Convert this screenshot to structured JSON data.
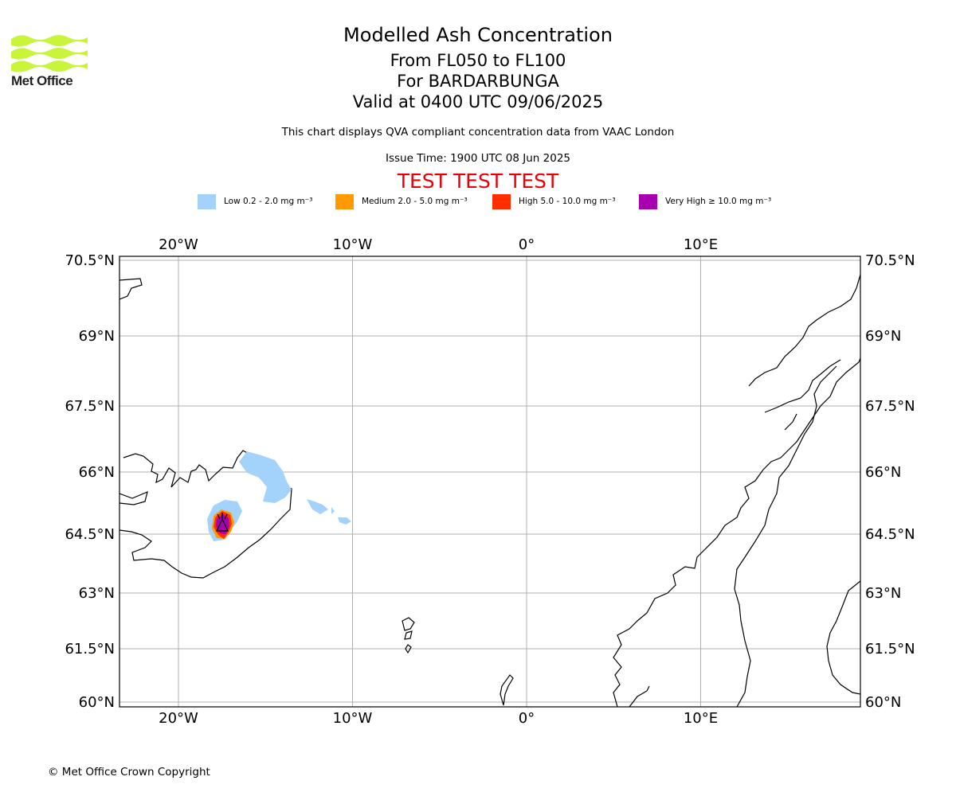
{
  "logo": {
    "text": "Met Office",
    "color": "#c8f53a"
  },
  "title": {
    "line1": "Modelled Ash Concentration",
    "line2": "From FL050 to FL100",
    "line3": "For BARDARBUNGA",
    "line4": "Valid at 0400 UTC 09/06/2025"
  },
  "description": "This chart displays QVA compliant concentration data from VAAC London",
  "issue_time": "Issue Time: 1900 UTC 08 Jun 2025",
  "test_banner": "TEST TEST TEST",
  "legend": [
    {
      "label": "Low 0.2 - 2.0 mg m⁻³",
      "color": "#a3d2fa"
    },
    {
      "label": "Medium 2.0 - 5.0 mg m⁻³",
      "color": "#ff9a00"
    },
    {
      "label": "High 5.0 - 10.0 mg m⁻³",
      "color": "#ff2d00"
    },
    {
      "label": "Very High ≥ 10.0 mg m⁻³",
      "color": "#a800b0"
    }
  ],
  "map": {
    "lon_range": [
      -23.5,
      19
    ],
    "lat_range": [
      60,
      70.5
    ],
    "lon_ticks": [
      {
        "value": -20,
        "label": "20°W"
      },
      {
        "value": -10,
        "label": "10°W"
      },
      {
        "value": 0,
        "label": "0°"
      },
      {
        "value": 10,
        "label": "10°E"
      }
    ],
    "lat_ticks": [
      {
        "value": 70.5,
        "label": "70.5°N"
      },
      {
        "value": 69,
        "label": "69°N"
      },
      {
        "value": 67.5,
        "label": "67.5°N"
      },
      {
        "value": 66,
        "label": "66°N"
      },
      {
        "value": 64.5,
        "label": "64.5°N"
      },
      {
        "value": 63,
        "label": "63°N"
      },
      {
        "value": 61.5,
        "label": "61.5°N"
      },
      {
        "value": 60,
        "label": "60°N"
      }
    ],
    "volcano_marker": "volcano-symbol"
  },
  "copyright": "© Met Office Crown Copyright"
}
